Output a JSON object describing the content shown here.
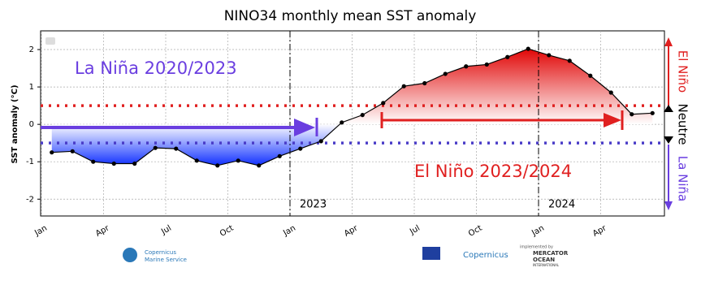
{
  "chart_data": {
    "type": "line",
    "title": "NINO34 monthly mean SST anomaly",
    "y_label": "SST anomaly (°C)",
    "categories": [
      "Jan",
      null,
      null,
      "Apr",
      null,
      null,
      "Jul",
      null,
      null,
      "Oct",
      null,
      null,
      "Jan",
      null,
      null,
      "Apr",
      null,
      null,
      "Jul",
      null,
      null,
      "Oct",
      null,
      null,
      "Jan",
      null,
      null,
      "Apr",
      null,
      null
    ],
    "series": [
      {
        "color": "#000000",
        "values": [
          -0.75,
          -0.72,
          -1.0,
          -1.05,
          -1.05,
          -0.63,
          -0.65,
          -0.97,
          -1.1,
          -0.97,
          -1.1,
          -0.85,
          -0.65,
          -0.45,
          0.05,
          0.25,
          0.57,
          1.02,
          1.1,
          1.35,
          1.55,
          1.6,
          1.8,
          2.02,
          1.85,
          1.7,
          1.3,
          0.85,
          0.27,
          0.3
        ]
      }
    ],
    "ylim": [
      -2.45,
      2.5
    ],
    "yticks": [
      -2,
      -1,
      0,
      1,
      2
    ],
    "grid": true,
    "thresholds": [
      {
        "value": 0.5,
        "color": "#e02020"
      },
      {
        "value": -0.5,
        "color": "#4a3cc8"
      }
    ],
    "year_labels": [
      "2023",
      "2024"
    ],
    "annotations": [
      {
        "text": "La Niña 2020/2023",
        "color": "#6a3ee0"
      },
      {
        "text": "El Niño 2023/2024",
        "color": "#e02020"
      }
    ],
    "phase_labels": [
      {
        "text": "El Niño",
        "color": "#e02020"
      },
      {
        "text": "Neutre",
        "color": "#000000"
      },
      {
        "text": "La Niña",
        "color": "#6a3ee0"
      }
    ],
    "footer": [
      "Copernicus",
      "Marine Service",
      "Copernicus",
      "implemented by",
      "MERCATOR",
      "OCEAN",
      "INTERNATIONAL"
    ]
  }
}
